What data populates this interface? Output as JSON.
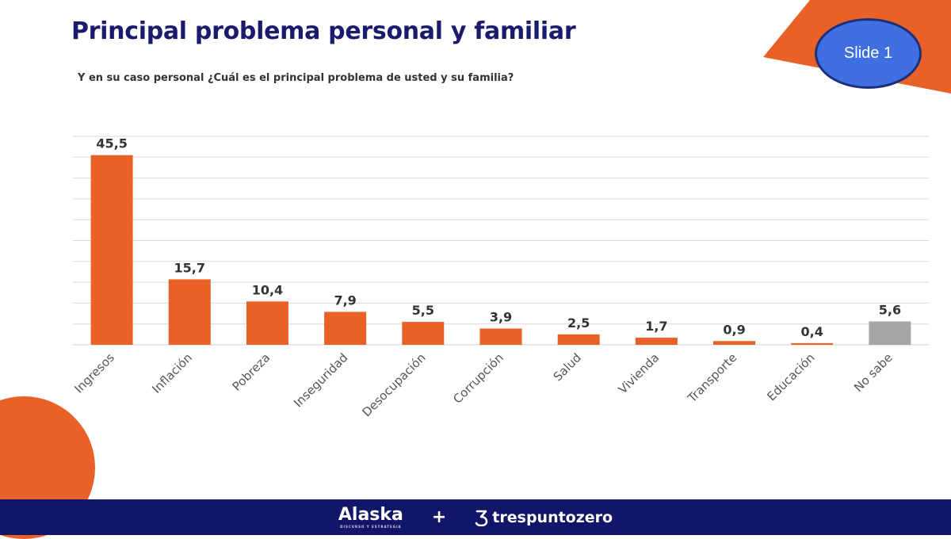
{
  "title": "Principal problema personal y familiar",
  "subtitle": "Y en su caso personal ¿Cuál es el principal problema de usted y su familia?",
  "badge": "Slide 1",
  "colors": {
    "accent": "#ea6127",
    "nosabe": "#a6a6a6",
    "navy": "#121668",
    "badge_fill": "#3f6fe0",
    "title": "#1a1a6e"
  },
  "footer": {
    "brand1": "Alaska",
    "brand1_tag": "DISCURSO Y ESTRATEGIA",
    "plus": "+",
    "brand2": "trespuntozero",
    "brand2_icon": "three-logo-icon"
  },
  "chart_data": {
    "type": "bar",
    "categories": [
      "Ingresos",
      "Inflación",
      "Pobreza",
      "Inseguridad",
      "Desocupación",
      "Corrupción",
      "Salud",
      "Vivienda",
      "Transporte",
      "Educación",
      "No sabe"
    ],
    "values": [
      45.5,
      15.7,
      10.4,
      7.9,
      5.5,
      3.9,
      2.5,
      1.7,
      0.9,
      0.4,
      5.6
    ],
    "value_labels": [
      "45,5",
      "15,7",
      "10,4",
      "7,9",
      "5,5",
      "3,9",
      "2,5",
      "1,7",
      "0,9",
      "0,4",
      "5,6"
    ],
    "ylim": [
      0,
      50
    ],
    "grid": true,
    "legend": "none"
  }
}
